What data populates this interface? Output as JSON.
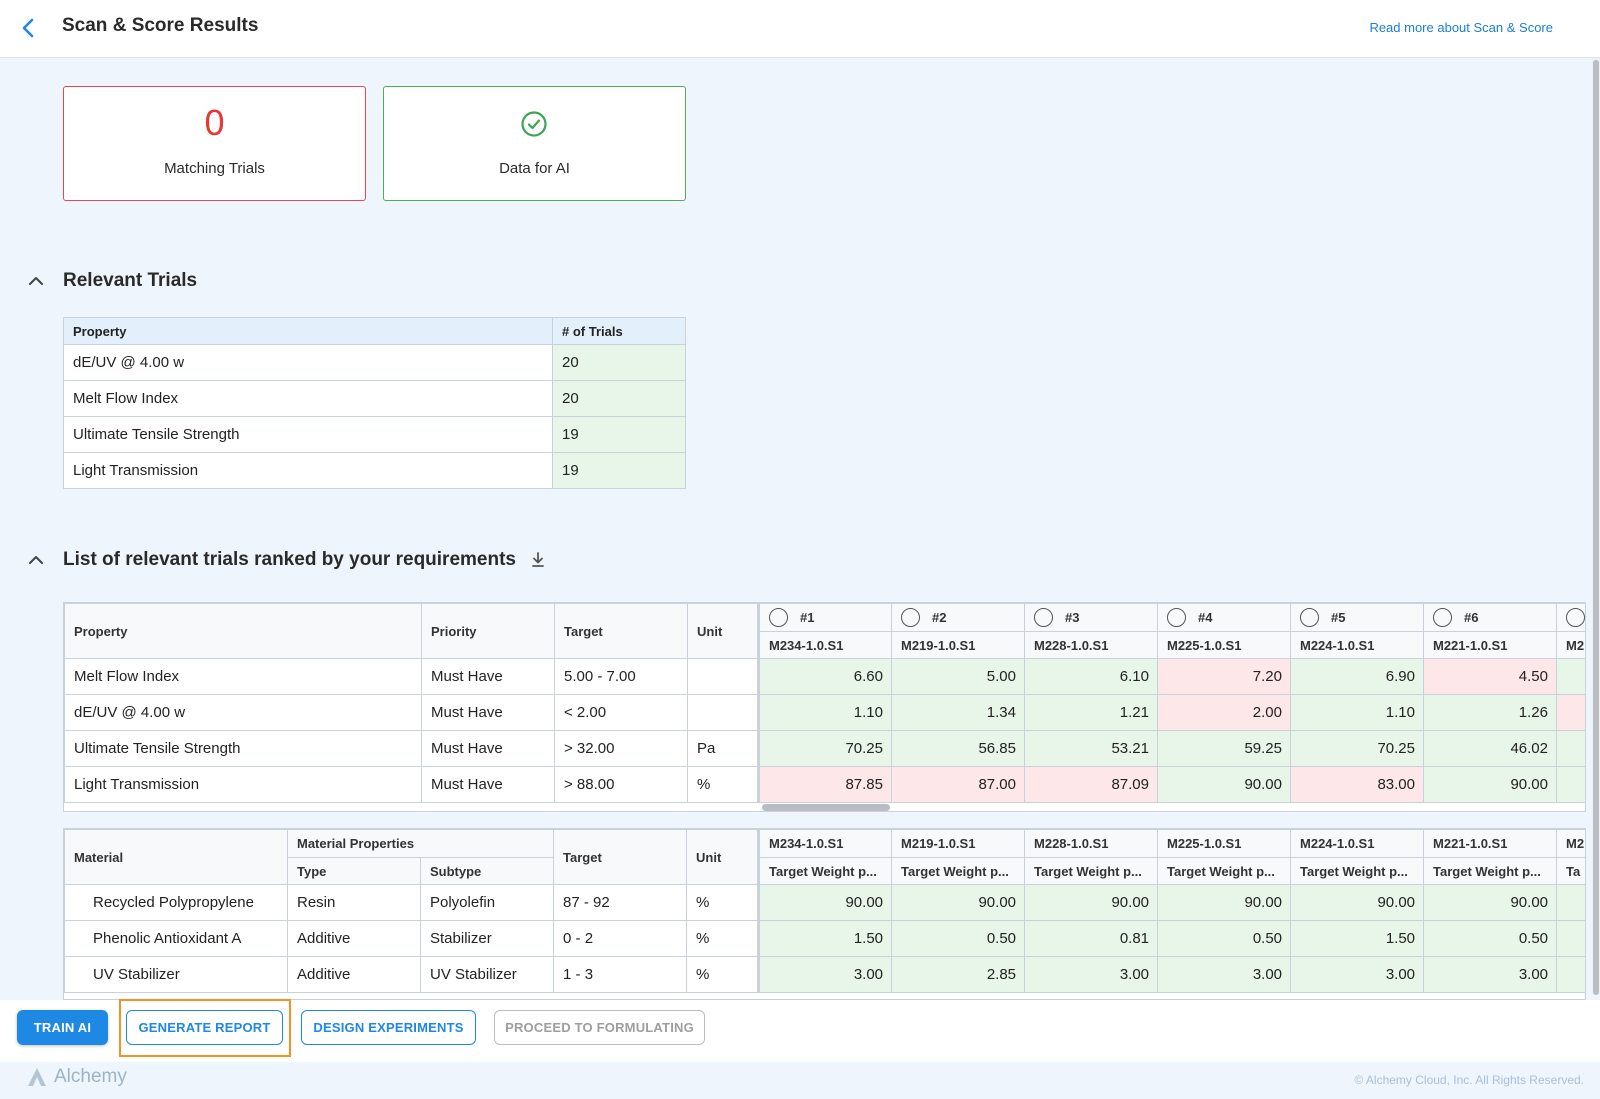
{
  "header": {
    "title": "Scan & Score Results",
    "read_more": "Read more about Scan & Score"
  },
  "summary": {
    "matching_count": "0",
    "matching_label": "Matching Trials",
    "ai_label": "Data for AI"
  },
  "relevant": {
    "title": "Relevant Trials",
    "headers": [
      "Property",
      "# of Trials"
    ],
    "rows": [
      {
        "property": "dE/UV @ 4.00 w",
        "count": "20"
      },
      {
        "property": "Melt Flow Index",
        "count": "20"
      },
      {
        "property": "Ultimate Tensile Strength",
        "count": "19"
      },
      {
        "property": "Light Transmission",
        "count": "19"
      }
    ]
  },
  "ranked": {
    "title": "List of relevant trials ranked by your requirements",
    "headers": {
      "property": "Property",
      "priority": "Priority",
      "target": "Target",
      "unit": "Unit"
    },
    "trials": [
      {
        "rank": "#1",
        "id": "M234-1.0.S1"
      },
      {
        "rank": "#2",
        "id": "M219-1.0.S1"
      },
      {
        "rank": "#3",
        "id": "M228-1.0.S1"
      },
      {
        "rank": "#4",
        "id": "M225-1.0.S1"
      },
      {
        "rank": "#5",
        "id": "M224-1.0.S1"
      },
      {
        "rank": "#6",
        "id": "M221-1.0.S1"
      },
      {
        "rank": "",
        "id": "M2"
      }
    ],
    "rows": [
      {
        "property": "Melt Flow Index",
        "priority": "Must Have",
        "target": "5.00 - 7.00",
        "unit": "",
        "values": [
          "6.60",
          "5.00",
          "6.10",
          "7.20",
          "6.90",
          "4.50",
          ""
        ],
        "status": [
          "ok",
          "ok",
          "ok",
          "bad",
          "ok",
          "bad",
          "ok"
        ]
      },
      {
        "property": "dE/UV @ 4.00 w",
        "priority": "Must Have",
        "target": "< 2.00",
        "unit": "",
        "values": [
          "1.10",
          "1.34",
          "1.21",
          "2.00",
          "1.10",
          "1.26",
          ""
        ],
        "status": [
          "ok",
          "ok",
          "ok",
          "bad",
          "ok",
          "ok",
          "bad"
        ]
      },
      {
        "property": "Ultimate Tensile Strength",
        "priority": "Must Have",
        "target": "> 32.00",
        "unit": "Pa",
        "values": [
          "70.25",
          "56.85",
          "53.21",
          "59.25",
          "70.25",
          "46.02",
          ""
        ],
        "status": [
          "ok",
          "ok",
          "ok",
          "ok",
          "ok",
          "ok",
          "ok"
        ]
      },
      {
        "property": "Light Transmission",
        "priority": "Must Have",
        "target": "> 88.00",
        "unit": "%",
        "values": [
          "87.85",
          "87.00",
          "87.09",
          "90.00",
          "83.00",
          "90.00",
          ""
        ],
        "status": [
          "bad",
          "bad",
          "bad",
          "ok",
          "bad",
          "ok",
          "ok"
        ]
      }
    ]
  },
  "materials": {
    "headers": {
      "material": "Material",
      "props": "Material Properties",
      "type": "Type",
      "subtype": "Subtype",
      "target": "Target",
      "unit": "Unit"
    },
    "trial_ids": [
      "M234-1.0.S1",
      "M219-1.0.S1",
      "M228-1.0.S1",
      "M225-1.0.S1",
      "M224-1.0.S1",
      "M221-1.0.S1",
      "M2"
    ],
    "sub_label": "Target Weight p...",
    "sub_label_last": "Ta",
    "rows": [
      {
        "material": "Recycled Polypropylene",
        "type": "Resin",
        "subtype": "Polyolefin",
        "target": "87 - 92",
        "unit": "%",
        "values": [
          "90.00",
          "90.00",
          "90.00",
          "90.00",
          "90.00",
          "90.00",
          ""
        ]
      },
      {
        "material": "Phenolic Antioxidant A",
        "type": "Additive",
        "subtype": "Stabilizer",
        "target": "0 - 2",
        "unit": "%",
        "values": [
          "1.50",
          "0.50",
          "0.81",
          "0.50",
          "1.50",
          "0.50",
          ""
        ]
      },
      {
        "material": "UV Stabilizer",
        "type": "Additive",
        "subtype": "UV Stabilizer",
        "target": "1 - 3",
        "unit": "%",
        "values": [
          "3.00",
          "2.85",
          "3.00",
          "3.00",
          "3.00",
          "3.00",
          ""
        ]
      }
    ]
  },
  "actions": {
    "train": "Train AI",
    "generate": "Generate Report",
    "design": "Design Experiments",
    "proceed": "Proceed to Formulating"
  },
  "footer": {
    "brand": "Alchemy",
    "copyright": "© Alchemy Cloud, Inc. All Rights Reserved."
  },
  "colors": {
    "accent": "#1e88e5",
    "ok_cell": "#e8f5e9",
    "bad_cell": "#fde7e9",
    "highlight": "#f39325",
    "error": "#e53935",
    "success": "#4caf50"
  }
}
